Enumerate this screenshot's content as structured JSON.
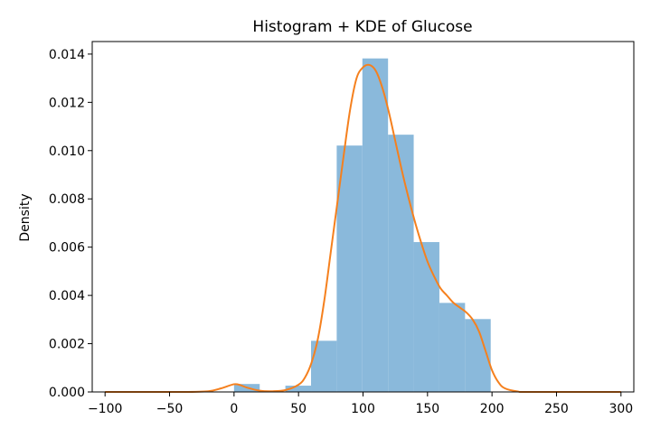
{
  "chart_data": {
    "type": "bar",
    "title": "Histogram + KDE of Glucose",
    "xlabel": "",
    "ylabel": "Density",
    "xlim": [
      -109.95,
      309.95
    ],
    "ylim": [
      0,
      0.01452
    ],
    "x_ticks": [
      -100,
      -50,
      0,
      50,
      100,
      150,
      200,
      250,
      300
    ],
    "x_tick_labels": [
      "−100",
      "−50",
      "0",
      "50",
      "100",
      "150",
      "200",
      "250",
      "300"
    ],
    "y_ticks": [
      0.0,
      0.002,
      0.004,
      0.006,
      0.008,
      0.01,
      0.012,
      0.014
    ],
    "y_tick_labels": [
      "0.000",
      "0.002",
      "0.004",
      "0.006",
      "0.008",
      "0.010",
      "0.012",
      "0.014"
    ],
    "grid": false,
    "histogram": {
      "color": "#8ab9db",
      "bins": [
        {
          "x0": 0,
          "x1": 19.9,
          "density": 0.00033
        },
        {
          "x0": 19.9,
          "x1": 39.8,
          "density": 0.0
        },
        {
          "x0": 39.8,
          "x1": 59.7,
          "density": 0.00026
        },
        {
          "x0": 59.7,
          "x1": 79.6,
          "density": 0.00212
        },
        {
          "x0": 79.6,
          "x1": 99.5,
          "density": 0.01021
        },
        {
          "x0": 99.5,
          "x1": 119.4,
          "density": 0.01382
        },
        {
          "x0": 119.4,
          "x1": 139.3,
          "density": 0.01066
        },
        {
          "x0": 139.3,
          "x1": 159.2,
          "density": 0.00621
        },
        {
          "x0": 159.2,
          "x1": 179.1,
          "density": 0.00369
        },
        {
          "x0": 179.1,
          "x1": 199.0,
          "density": 0.00302
        }
      ]
    },
    "kde": {
      "color": "#f5801e",
      "x": [
        -100,
        -40,
        -20,
        -10,
        0,
        5,
        10,
        20,
        30,
        40,
        50,
        55,
        60,
        65,
        70,
        75,
        80,
        85,
        90,
        95,
        100,
        105,
        110,
        115,
        120,
        125,
        130,
        135,
        140,
        145,
        150,
        155,
        160,
        165,
        170,
        175,
        180,
        185,
        190,
        195,
        200,
        205,
        210,
        220,
        230,
        300
      ],
      "y": [
        0.0,
        0.0,
        3e-05,
        0.00015,
        0.00032,
        0.00028,
        0.00018,
        5e-05,
        3e-05,
        8e-05,
        0.0003,
        0.0006,
        0.0012,
        0.0022,
        0.0038,
        0.0058,
        0.0078,
        0.0098,
        0.0117,
        0.013,
        0.01345,
        0.01355,
        0.0133,
        0.0126,
        0.0116,
        0.0104,
        0.0092,
        0.0081,
        0.0071,
        0.0062,
        0.0054,
        0.0048,
        0.0043,
        0.004,
        0.0037,
        0.0035,
        0.0033,
        0.003,
        0.0025,
        0.0017,
        0.0009,
        0.0004,
        0.00015,
        2e-05,
        0.0,
        0.0
      ]
    }
  }
}
